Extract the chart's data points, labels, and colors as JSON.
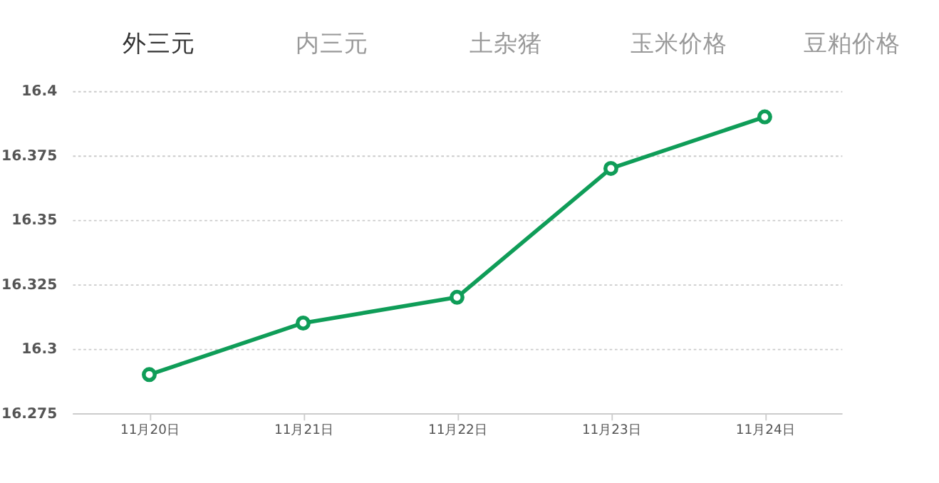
{
  "chart_data": {
    "type": "line",
    "annotations": [
      "外三元",
      "内三元",
      "土杂猪",
      "玉米价格",
      "豆粕价格"
    ],
    "categories": [
      "11月20日",
      "11月21日",
      "11月22日",
      "11月23日",
      "11月24日"
    ],
    "series": [
      {
        "color": "#0f9d58",
        "values": [
          16.29,
          16.31,
          16.32,
          16.37,
          16.39
        ]
      }
    ],
    "ylim": [
      16.275,
      16.4
    ],
    "yticks": [
      16.275,
      16.3,
      16.325,
      16.35,
      16.375,
      16.4
    ],
    "grid": "y",
    "marker": "circle",
    "line_style": "solid",
    "legend": false
  }
}
